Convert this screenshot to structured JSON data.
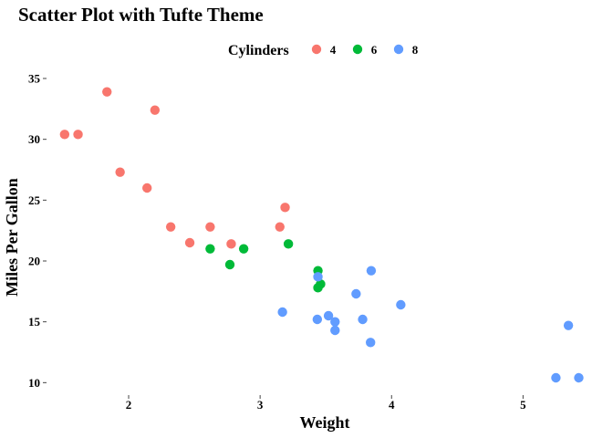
{
  "chart_data": {
    "type": "scatter",
    "title": "Scatter Plot with Tufte Theme",
    "xlabel": "Weight",
    "ylabel": "Miles Per Gallon",
    "xlim": [
      1.41,
      5.49
    ],
    "ylim": [
      9.2,
      35.6
    ],
    "x_ticks": [
      2,
      3,
      4,
      5
    ],
    "y_ticks": [
      10,
      15,
      20,
      25,
      30,
      35
    ],
    "grid": false,
    "legend": {
      "title": "Cylinders",
      "position": "top"
    },
    "series": [
      {
        "name": "4",
        "color": "#F8766D",
        "points": [
          {
            "x": 2.62,
            "y": 22.8
          },
          {
            "x": 2.32,
            "y": 22.8
          },
          {
            "x": 3.19,
            "y": 24.4
          },
          {
            "x": 3.15,
            "y": 22.8
          },
          {
            "x": 2.2,
            "y": 32.4
          },
          {
            "x": 1.615,
            "y": 30.4
          },
          {
            "x": 1.835,
            "y": 33.9
          },
          {
            "x": 2.465,
            "y": 21.5
          },
          {
            "x": 1.935,
            "y": 27.3
          },
          {
            "x": 2.14,
            "y": 26.0
          },
          {
            "x": 1.513,
            "y": 30.4
          },
          {
            "x": 2.78,
            "y": 21.4
          }
        ]
      },
      {
        "name": "6",
        "color": "#00BA38",
        "points": [
          {
            "x": 2.62,
            "y": 21.0
          },
          {
            "x": 2.875,
            "y": 21.0
          },
          {
            "x": 3.215,
            "y": 21.4
          },
          {
            "x": 3.46,
            "y": 18.1
          },
          {
            "x": 3.44,
            "y": 19.2
          },
          {
            "x": 3.44,
            "y": 17.8
          },
          {
            "x": 2.77,
            "y": 19.7
          }
        ]
      },
      {
        "name": "8",
        "color": "#619CFF",
        "points": [
          {
            "x": 3.44,
            "y": 18.7
          },
          {
            "x": 3.57,
            "y": 14.3
          },
          {
            "x": 4.07,
            "y": 16.4
          },
          {
            "x": 3.73,
            "y": 17.3
          },
          {
            "x": 3.78,
            "y": 15.2
          },
          {
            "x": 5.25,
            "y": 10.4
          },
          {
            "x": 5.424,
            "y": 10.4
          },
          {
            "x": 5.345,
            "y": 14.7
          },
          {
            "x": 3.52,
            "y": 15.5
          },
          {
            "x": 3.435,
            "y": 15.2
          },
          {
            "x": 3.84,
            "y": 13.3
          },
          {
            "x": 3.845,
            "y": 19.2
          },
          {
            "x": 3.17,
            "y": 15.8
          },
          {
            "x": 3.57,
            "y": 15.0
          }
        ]
      }
    ]
  }
}
